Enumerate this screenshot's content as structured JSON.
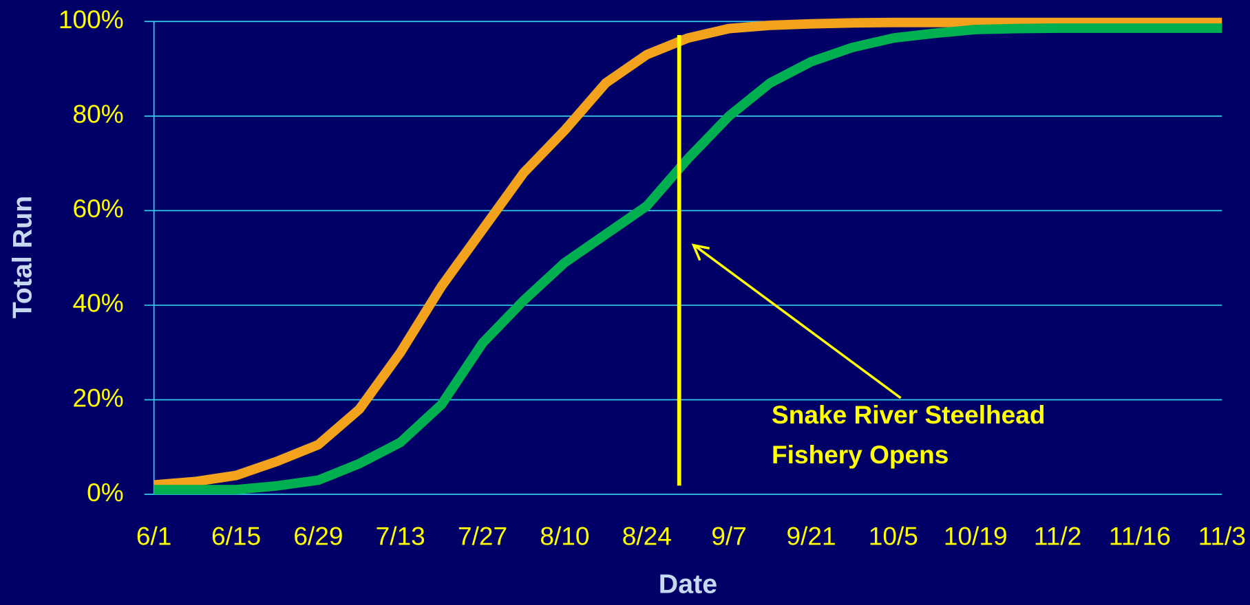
{
  "chart_data": {
    "type": "line",
    "x_label": "Date",
    "y_label": "Total Run",
    "annotation": [
      "Snake River Steelhead",
      "Fishery Opens"
    ],
    "categories": [
      "6/1",
      null,
      "6/15",
      null,
      "6/29",
      null,
      "7/13",
      null,
      "7/27",
      null,
      "8/10",
      null,
      "8/24",
      null,
      "9/7",
      null,
      "9/21",
      null,
      "10/5",
      null,
      "10/19",
      null,
      "11/2",
      null,
      "11/16",
      null,
      "11/3"
    ],
    "series": [
      {
        "name": "Orange",
        "color": "#f2a21d",
        "values": [
          2,
          2.7,
          4,
          7,
          10.5,
          18,
          30,
          44,
          56,
          68,
          77,
          87,
          93,
          96.5,
          98.5,
          99.2,
          99.5,
          99.7,
          99.8,
          99.8,
          99.8,
          99.8,
          99.8,
          99.8,
          99.8,
          99.8,
          99.8
        ]
      },
      {
        "name": "Green",
        "color": "#00b050",
        "values": [
          1,
          1,
          1,
          1.8,
          3,
          6.5,
          11,
          19,
          32,
          41,
          49,
          55,
          61,
          71,
          80,
          87,
          91.5,
          94.5,
          96.5,
          97.5,
          98.3,
          98.5,
          98.6,
          98.6,
          98.6,
          98.6,
          98.6
        ]
      }
    ],
    "ylim": [
      0,
      100
    ],
    "yticks": [
      {
        "value": 0,
        "label": "0%"
      },
      {
        "value": 20,
        "label": "20%"
      },
      {
        "value": 40,
        "label": "40%"
      },
      {
        "value": 60,
        "label": "60%"
      },
      {
        "value": 80,
        "label": "80%"
      },
      {
        "value": 100,
        "label": "100%"
      }
    ],
    "grid": true
  }
}
